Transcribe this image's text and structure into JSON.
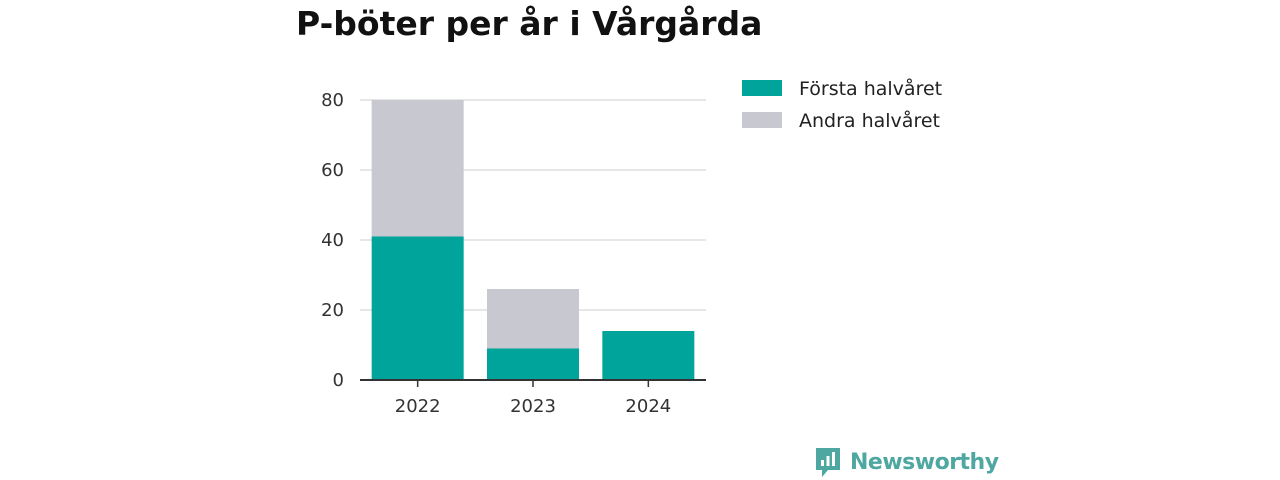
{
  "title": "P-böter per år i Vårgårda",
  "brand": {
    "name": "Newsworthy",
    "icon": "newsworthy-logo-icon",
    "color": "#4ea7a0"
  },
  "chart_data": {
    "type": "bar",
    "stacked": true,
    "categories": [
      "2022",
      "2023",
      "2024"
    ],
    "series": [
      {
        "name": "Första halvåret",
        "color": "#00a49a",
        "values": [
          41,
          9,
          14
        ]
      },
      {
        "name": "Andra halvåret",
        "color": "#c8c8d0",
        "values": [
          39,
          17,
          0
        ]
      }
    ],
    "ylim": [
      0,
      80
    ],
    "yticks": [
      0,
      20,
      40,
      60,
      80
    ],
    "grid": true,
    "legend": "top-right"
  }
}
